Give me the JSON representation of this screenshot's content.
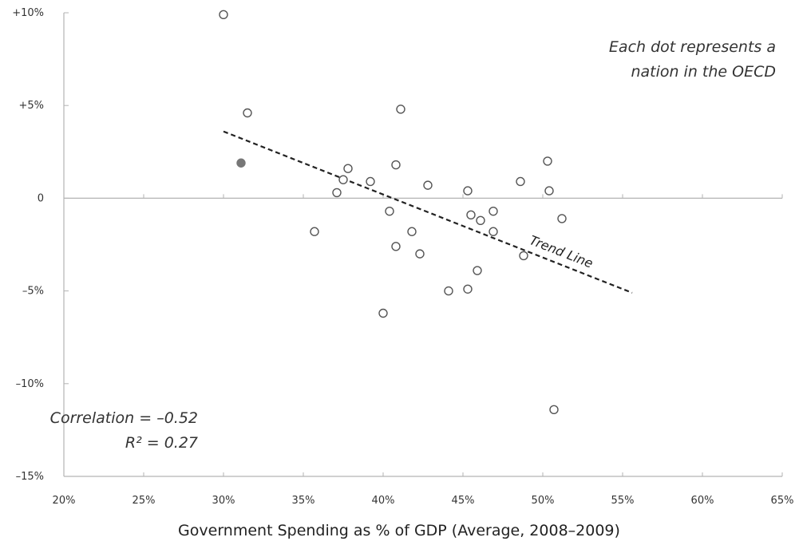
{
  "chart_data": {
    "type": "scatter",
    "title": "",
    "xlabel": "Government Spending as % of GDP (Average, 2008–2009)",
    "ylabel": "",
    "xlim": [
      20,
      65
    ],
    "ylim": [
      -15,
      10
    ],
    "x_ticks": [
      {
        "value": 20,
        "label": "20%"
      },
      {
        "value": 25,
        "label": "25%"
      },
      {
        "value": 30,
        "label": "30%"
      },
      {
        "value": 35,
        "label": "35%"
      },
      {
        "value": 40,
        "label": "40%"
      },
      {
        "value": 45,
        "label": "45%"
      },
      {
        "value": 50,
        "label": "50%"
      },
      {
        "value": 55,
        "label": "55%"
      },
      {
        "value": 60,
        "label": "60%"
      },
      {
        "value": 65,
        "label": "65%"
      }
    ],
    "y_ticks": [
      {
        "value": 10,
        "label": "+10%"
      },
      {
        "value": 5,
        "label": "+5%"
      },
      {
        "value": 0,
        "label": "0"
      },
      {
        "value": -5,
        "label": "–5%"
      },
      {
        "value": -10,
        "label": "–10%"
      },
      {
        "value": -15,
        "label": "–15%"
      }
    ],
    "grid": false,
    "points": [
      {
        "x": 30.0,
        "y": 9.9,
        "highlight": false
      },
      {
        "x": 31.5,
        "y": 4.6,
        "highlight": false
      },
      {
        "x": 31.1,
        "y": 1.9,
        "highlight": true
      },
      {
        "x": 35.7,
        "y": -1.8,
        "highlight": false
      },
      {
        "x": 37.1,
        "y": 0.3,
        "highlight": false
      },
      {
        "x": 37.5,
        "y": 1.0,
        "highlight": false
      },
      {
        "x": 37.8,
        "y": 1.6,
        "highlight": false
      },
      {
        "x": 39.2,
        "y": 0.9,
        "highlight": false
      },
      {
        "x": 40.0,
        "y": -6.2,
        "highlight": false
      },
      {
        "x": 40.4,
        "y": -0.7,
        "highlight": false
      },
      {
        "x": 40.8,
        "y": 1.8,
        "highlight": false
      },
      {
        "x": 40.8,
        "y": -2.6,
        "highlight": false
      },
      {
        "x": 41.1,
        "y": 4.8,
        "highlight": false
      },
      {
        "x": 41.8,
        "y": -1.8,
        "highlight": false
      },
      {
        "x": 42.3,
        "y": -3.0,
        "highlight": false
      },
      {
        "x": 42.8,
        "y": 0.7,
        "highlight": false
      },
      {
        "x": 44.1,
        "y": -5.0,
        "highlight": false
      },
      {
        "x": 45.3,
        "y": 0.4,
        "highlight": false
      },
      {
        "x": 45.3,
        "y": -4.9,
        "highlight": false
      },
      {
        "x": 45.5,
        "y": -0.9,
        "highlight": false
      },
      {
        "x": 45.9,
        "y": -3.9,
        "highlight": false
      },
      {
        "x": 46.1,
        "y": -1.2,
        "highlight": false
      },
      {
        "x": 46.9,
        "y": -0.7,
        "highlight": false
      },
      {
        "x": 46.9,
        "y": -1.8,
        "highlight": false
      },
      {
        "x": 48.6,
        "y": 0.9,
        "highlight": false
      },
      {
        "x": 48.8,
        "y": -3.1,
        "highlight": false
      },
      {
        "x": 50.3,
        "y": 2.0,
        "highlight": false
      },
      {
        "x": 50.4,
        "y": 0.4,
        "highlight": false
      },
      {
        "x": 50.7,
        "y": -11.4,
        "highlight": false
      },
      {
        "x": 51.2,
        "y": -1.1,
        "highlight": false
      }
    ],
    "trend_line": {
      "label": "Trend Line",
      "x1": 30.0,
      "y1": 3.6,
      "x2": 55.6,
      "y2": -5.1
    },
    "annotations": {
      "note_lines": [
        "Each dot represents a",
        "nation in the OECD"
      ],
      "correlation": "Correlation = –0.52",
      "r_squared": "R² = 0.27"
    },
    "colors": {
      "axis": "#b3b3b3",
      "point_stroke": "#555555",
      "highlight_fill": "#777777",
      "trend": "#222222"
    }
  }
}
